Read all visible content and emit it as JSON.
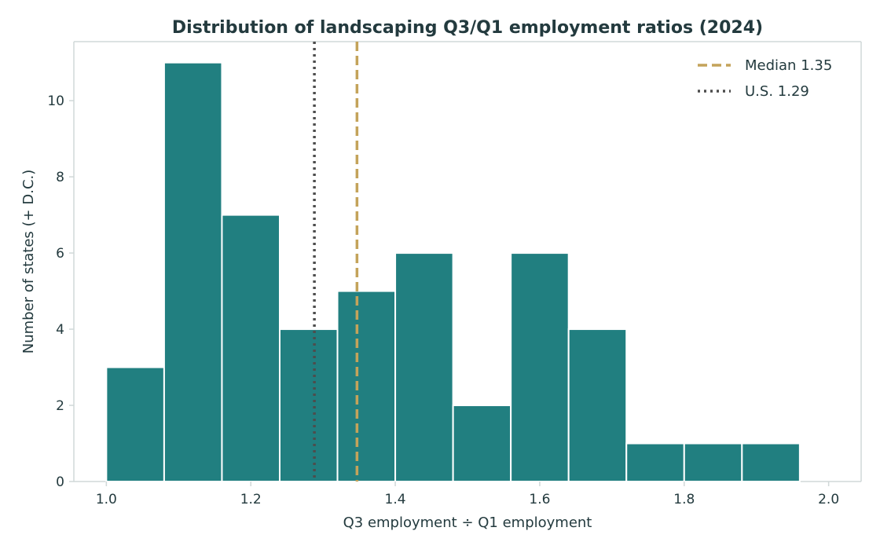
{
  "chart_data": {
    "type": "bar",
    "title": "Distribution of landscaping Q3/Q1 employment ratios (2024)",
    "xlabel": "Q3 employment ÷ Q1 employment",
    "ylabel": "Number of states (+ D.C.)",
    "xlim": [
      0.955,
      2.045
    ],
    "ylim": [
      0,
      11.55
    ],
    "x_ticks": [
      1.0,
      1.2,
      1.4,
      1.6,
      1.8,
      2.0
    ],
    "x_tick_labels": [
      "1.0",
      "1.2",
      "1.4",
      "1.6",
      "1.8",
      "2.0"
    ],
    "y_ticks": [
      0,
      2,
      4,
      6,
      8,
      10
    ],
    "y_tick_labels": [
      "0",
      "2",
      "4",
      "6",
      "8",
      "10"
    ],
    "bins": [
      {
        "start": 1.0,
        "end": 1.08,
        "count": 3
      },
      {
        "start": 1.08,
        "end": 1.16,
        "count": 11
      },
      {
        "start": 1.16,
        "end": 1.24,
        "count": 7
      },
      {
        "start": 1.24,
        "end": 1.32,
        "count": 4
      },
      {
        "start": 1.32,
        "end": 1.4,
        "count": 5
      },
      {
        "start": 1.4,
        "end": 1.48,
        "count": 6
      },
      {
        "start": 1.48,
        "end": 1.56,
        "count": 2
      },
      {
        "start": 1.56,
        "end": 1.64,
        "count": 6
      },
      {
        "start": 1.64,
        "end": 1.72,
        "count": 4
      },
      {
        "start": 1.72,
        "end": 1.8,
        "count": 1
      },
      {
        "start": 1.8,
        "end": 1.88,
        "count": 1
      },
      {
        "start": 1.88,
        "end": 1.96,
        "count": 1
      }
    ],
    "reference_lines": [
      {
        "label": "Median 1.35",
        "value": 1.347,
        "style": "dashed",
        "color": "#c4a35a"
      },
      {
        "label": "U.S. 1.29",
        "value": 1.288,
        "style": "dotted",
        "color": "#4d4d4d"
      }
    ],
    "legend_position": "top-right",
    "grid": false,
    "colors": {
      "bar": "#217f80",
      "bar_edge": "#ffffff",
      "text": "#233a3e",
      "axis": "#d0d8d8"
    }
  }
}
